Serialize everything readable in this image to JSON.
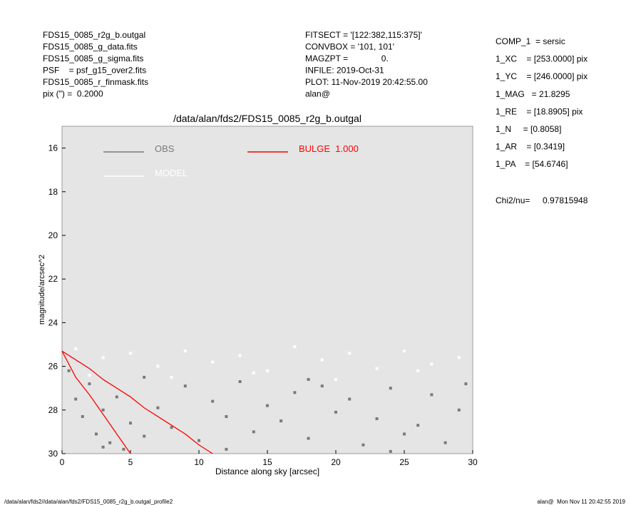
{
  "header": {
    "left": [
      "FDS15_0085_r2g_b.outgal",
      "FDS15_0085_g_data.fits",
      "FDS15_0085_g_sigma.fits",
      "PSF    = psf_g15_over2.fits",
      "FDS15_0085_r_finmask.fits",
      "pix (\") =  0.2000"
    ],
    "middle": [
      "FITSECT = '[122:382,115:375]'",
      "CONVBOX = '101, 101'",
      "MAGZPT =              0.",
      "INFILE: 2019-Oct-31",
      "PLOT: 11-Nov-2019 20:42:55.00",
      "alan@"
    ]
  },
  "parameters": [
    "COMP_1  = sersic",
    "1_XC    = [253.0000] pix",
    "1_YC    = [246.0000] pix",
    "1_MAG   = 21.8295",
    "1_RE    = [18.8905] pix",
    "1_N     = [0.8058]",
    "1_AR    = [0.3419]",
    "1_PA    = [54.6746]"
  ],
  "chi2": {
    "label": "Chi2/nu=",
    "value": "0.97815948"
  },
  "footer": {
    "left": "/data/alan/fds2//data/alan/fds2/FDS15_0085_r2g_b.outgal_profile2",
    "right": "alan@  Mon Nov 11 20:42:55 2019"
  },
  "chart_data": {
    "type": "scatter",
    "title": "/data/alan/fds2/FDS15_0085_r2g_b.outgal",
    "x_label": "Distance along sky [arcsec]",
    "y_label": "magnitude/arcsec^2",
    "xlim": [
      0,
      30
    ],
    "xticks": [
      0,
      5,
      10,
      15,
      20,
      25,
      30
    ],
    "ylim": [
      30,
      15
    ],
    "yticks": [
      16,
      18,
      20,
      22,
      24,
      26,
      28,
      30
    ],
    "background": "#e5e5e5",
    "series": [
      {
        "name": "OBS",
        "color": "#7a7a7a",
        "x": [
          0.5,
          1,
          1.5,
          2,
          2.5,
          3,
          3.5,
          4,
          4.5,
          5,
          6,
          7,
          8,
          9,
          10,
          11,
          12,
          13,
          14,
          15,
          16,
          17,
          18,
          19,
          20,
          21,
          22,
          23,
          24,
          25,
          26,
          27,
          28,
          29,
          29.5,
          3,
          6,
          12,
          18,
          24
        ],
        "values": [
          26.2,
          27.5,
          28.3,
          26.8,
          29.1,
          28.0,
          29.5,
          27.4,
          29.8,
          28.6,
          29.2,
          27.9,
          28.8,
          26.9,
          29.4,
          27.6,
          28.3,
          26.7,
          29.0,
          27.8,
          28.5,
          27.2,
          29.3,
          26.9,
          28.1,
          27.5,
          29.6,
          28.4,
          27.0,
          29.1,
          28.7,
          27.3,
          29.5,
          28.0,
          26.8,
          29.7,
          26.5,
          29.8,
          26.6,
          29.9
        ]
      },
      {
        "name": "MODEL",
        "color": "#ffffff",
        "x": [
          1,
          3,
          5,
          7,
          9,
          11,
          13,
          15,
          17,
          19,
          21,
          23,
          25,
          27,
          29,
          2,
          8,
          14,
          20,
          26
        ],
        "values": [
          25.2,
          25.6,
          25.4,
          26.0,
          25.3,
          25.8,
          25.5,
          26.2,
          25.1,
          25.7,
          25.4,
          26.1,
          25.3,
          25.9,
          25.6,
          26.4,
          26.5,
          26.3,
          26.6,
          26.2
        ]
      },
      {
        "name": "BULGE  1.000",
        "color": "#ff0000",
        "x": [
          0,
          1,
          2,
          3,
          4,
          5,
          6,
          7,
          8,
          9,
          10,
          11
        ],
        "values": [
          25.3,
          25.7,
          26.1,
          26.6,
          27.0,
          27.4,
          27.9,
          28.3,
          28.7,
          29.1,
          29.6,
          30.0
        ],
        "low": [
          25.3,
          26.5,
          27.3,
          28.2,
          29.1,
          30.0,
          null,
          null,
          null,
          null,
          null,
          null
        ]
      }
    ]
  }
}
